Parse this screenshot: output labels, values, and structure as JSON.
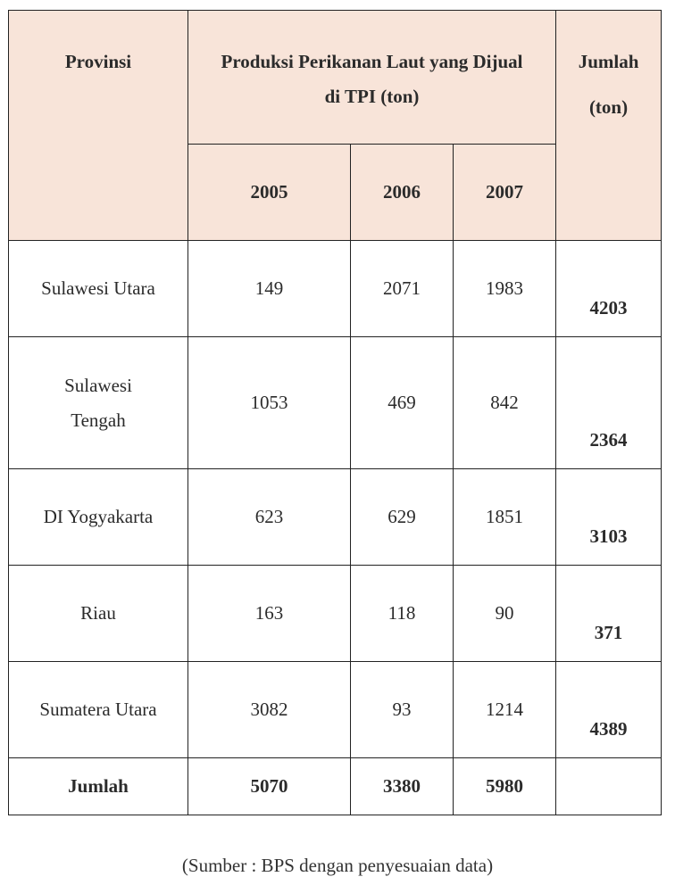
{
  "header": {
    "province": "Provinsi",
    "production": "Produksi Perikanan Laut yang Dijual di TPI (ton)",
    "total_line1": "Jumlah",
    "total_line2": "(ton)",
    "years": [
      "2005",
      "2006",
      "2007"
    ]
  },
  "rows": [
    {
      "province": "Sulawesi Utara",
      "y2005": "149",
      "y2006": "2071",
      "y2007": "1983",
      "total": "4203"
    },
    {
      "province": "Sulawesi Tengah",
      "y2005": "1053",
      "y2006": "469",
      "y2007": "842",
      "total": "2364"
    },
    {
      "province": "DI Yogyakarta",
      "y2005": "623",
      "y2006": "629",
      "y2007": "1851",
      "total": "3103"
    },
    {
      "province": "Riau",
      "y2005": "163",
      "y2006": "118",
      "y2007": "90",
      "total": "371"
    },
    {
      "province": "Sumatera Utara",
      "y2005": "3082",
      "y2006": "93",
      "y2007": "1214",
      "total": "4389"
    }
  ],
  "footer": {
    "label": "Jumlah",
    "y2005": "5070",
    "y2006": "3380",
    "y2007": "5980",
    "total": ""
  },
  "source": "(Sumber : BPS dengan penyesuaian data)"
}
